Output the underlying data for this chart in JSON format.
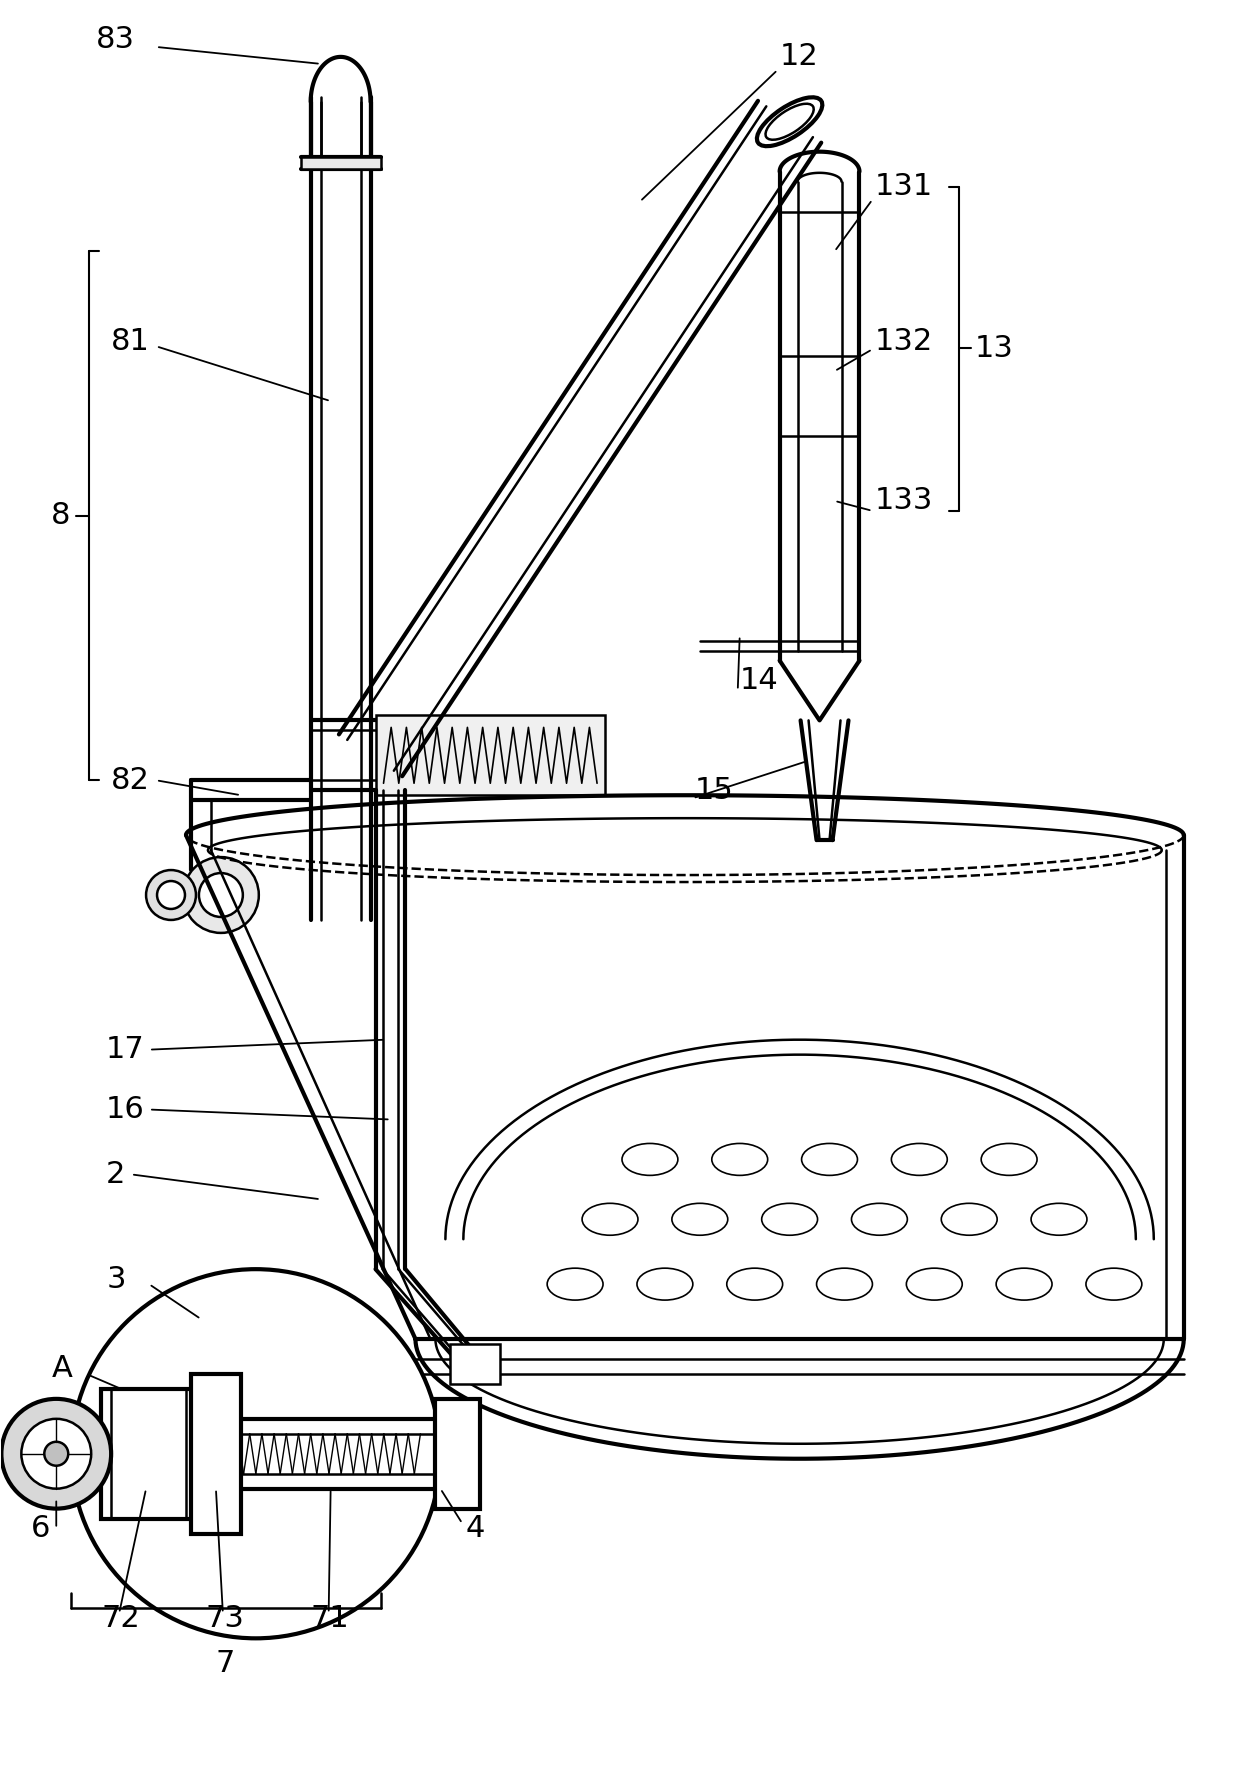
{
  "bg": "#ffffff",
  "lc": "#000000",
  "lw": 1.8,
  "tlw": 3.0,
  "fig_w": 12.4,
  "fig_h": 17.91,
  "dpi": 100
}
